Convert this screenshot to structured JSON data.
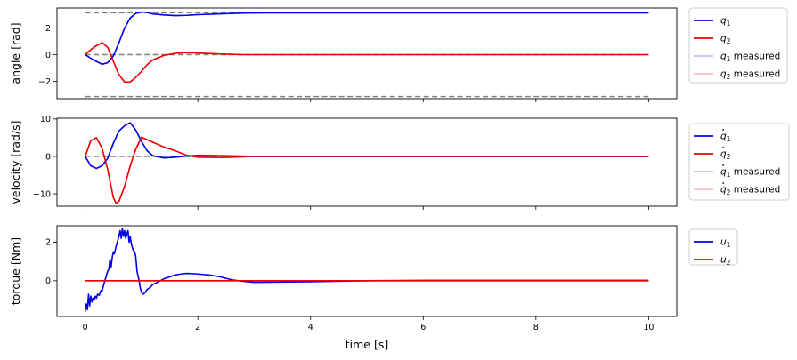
{
  "chart_data": [
    {
      "type": "line",
      "ylabel": "angle [rad]",
      "xlim": [
        -0.5,
        10.5
      ],
      "ylim": [
        -3.3,
        3.5
      ],
      "yticks": [
        -2,
        0,
        2
      ],
      "xticks": [
        0,
        2,
        4,
        6,
        8,
        10
      ],
      "show_xticklabels": false,
      "legend_position": "outside-right-top",
      "reference_lines": [
        {
          "y": 3.1416,
          "color": "#808080",
          "style": "dashed"
        },
        {
          "y": 0,
          "color": "#808080",
          "style": "dashed"
        },
        {
          "y": -3.1416,
          "color": "#808080",
          "style": "dashed"
        }
      ],
      "series": [
        {
          "name": "q1",
          "sym": "q",
          "sub": "1",
          "dot": false,
          "suffix": "",
          "color": "#0000ee",
          "alpha": 1,
          "x": [
            0,
            0.15,
            0.3,
            0.4,
            0.5,
            0.6,
            0.7,
            0.8,
            0.9,
            1.0,
            1.1,
            1.2,
            1.4,
            1.6,
            1.8,
            2.0,
            2.4,
            2.8,
            3.2,
            4,
            6,
            8,
            10
          ],
          "y": [
            0,
            -0.4,
            -0.72,
            -0.6,
            -0.1,
            0.9,
            2.0,
            2.75,
            3.1,
            3.2,
            3.17,
            3.05,
            2.98,
            2.93,
            2.95,
            3.0,
            3.06,
            3.12,
            3.14,
            3.14,
            3.14,
            3.14,
            3.14
          ]
        },
        {
          "name": "q2",
          "sym": "q",
          "sub": "2",
          "dot": false,
          "suffix": "",
          "color": "#ee0000",
          "alpha": 1,
          "x": [
            0,
            0.15,
            0.3,
            0.4,
            0.5,
            0.6,
            0.7,
            0.8,
            0.9,
            1.0,
            1.1,
            1.2,
            1.4,
            1.6,
            1.8,
            2.0,
            2.4,
            2.8,
            3.2,
            4,
            6,
            8,
            10
          ],
          "y": [
            0,
            0.55,
            0.9,
            0.55,
            -0.5,
            -1.5,
            -2.05,
            -2.05,
            -1.7,
            -1.25,
            -0.75,
            -0.4,
            -0.05,
            0.1,
            0.15,
            0.12,
            0.05,
            0.0,
            0.0,
            0.0,
            0.0,
            0.0,
            0.0
          ]
        },
        {
          "name": "q1 measured",
          "sym": "q",
          "sub": "1",
          "dot": false,
          "suffix": " measured",
          "color": "#0000ee",
          "alpha": 0.25,
          "x": [
            0,
            0.15,
            0.3,
            0.4,
            0.5,
            0.6,
            0.7,
            0.8,
            0.9,
            1.0,
            1.1,
            1.2,
            1.4,
            1.6,
            1.8,
            2.0,
            2.4,
            2.8,
            3.2,
            4,
            6,
            8,
            10
          ],
          "y": [
            0,
            -0.4,
            -0.72,
            -0.6,
            -0.1,
            0.9,
            2.0,
            2.75,
            3.1,
            3.2,
            3.17,
            3.05,
            2.98,
            2.93,
            2.95,
            3.0,
            3.06,
            3.12,
            3.14,
            3.14,
            3.14,
            3.14,
            3.14
          ]
        },
        {
          "name": "q2 measured",
          "sym": "q",
          "sub": "2",
          "dot": false,
          "suffix": " measured",
          "color": "#ee0000",
          "alpha": 0.25,
          "x": [
            0,
            0.15,
            0.3,
            0.4,
            0.5,
            0.6,
            0.7,
            0.8,
            0.9,
            1.0,
            1.1,
            1.2,
            1.4,
            1.6,
            1.8,
            2.0,
            2.4,
            2.8,
            3.2,
            4,
            6,
            8,
            10
          ],
          "y": [
            0,
            0.55,
            0.9,
            0.55,
            -0.5,
            -1.5,
            -2.05,
            -2.05,
            -1.7,
            -1.25,
            -0.75,
            -0.4,
            -0.05,
            0.1,
            0.15,
            0.12,
            0.05,
            0.0,
            0.0,
            0.0,
            0.0,
            0.0,
            0.0
          ]
        }
      ]
    },
    {
      "type": "line",
      "ylabel": "velocity [rad/s]",
      "xlim": [
        -0.5,
        10.5
      ],
      "ylim": [
        -13.3,
        10.2
      ],
      "yticks": [
        -10,
        0,
        10
      ],
      "xticks": [
        0,
        2,
        4,
        6,
        8,
        10
      ],
      "show_xticklabels": false,
      "legend_position": "outside-right-top",
      "reference_lines": [
        {
          "y": 0,
          "color": "#808080",
          "style": "dashed"
        }
      ],
      "series": [
        {
          "name": "q̇1",
          "sym": "q",
          "sub": "1",
          "dot": true,
          "suffix": "",
          "color": "#0000ee",
          "alpha": 1,
          "x": [
            0,
            0.1,
            0.2,
            0.3,
            0.4,
            0.5,
            0.6,
            0.7,
            0.8,
            0.9,
            1.0,
            1.1,
            1.2,
            1.4,
            1.6,
            1.8,
            2.0,
            2.4,
            3,
            4,
            6,
            8,
            10
          ],
          "y": [
            0,
            -2.5,
            -3.2,
            -2.5,
            -0.5,
            3.5,
            6.8,
            8.2,
            9.0,
            7.0,
            4.0,
            1.5,
            0.2,
            -0.4,
            -0.2,
            0.1,
            0.25,
            0.2,
            0.0,
            0.0,
            0.0,
            0.0,
            0.0
          ]
        },
        {
          "name": "q̇2",
          "sym": "q",
          "sub": "2",
          "dot": true,
          "suffix": "",
          "color": "#ee0000",
          "alpha": 1,
          "x": [
            0,
            0.1,
            0.2,
            0.3,
            0.4,
            0.5,
            0.55,
            0.6,
            0.7,
            0.8,
            0.9,
            1.0,
            1.2,
            1.4,
            1.6,
            1.8,
            2.0,
            2.4,
            3,
            4,
            6,
            8,
            10
          ],
          "y": [
            0,
            4.2,
            5.0,
            2.2,
            -3.5,
            -11.0,
            -12.5,
            -12.0,
            -8.0,
            -2.5,
            2.0,
            5.1,
            3.8,
            2.5,
            1.5,
            0.3,
            -0.2,
            -0.3,
            0.0,
            0.0,
            0.0,
            0.0,
            0.0
          ]
        },
        {
          "name": "q̇1 measured",
          "sym": "q",
          "sub": "1",
          "dot": true,
          "suffix": " measured",
          "color": "#0000ee",
          "alpha": 0.25,
          "x": [
            0,
            0.1,
            0.2,
            0.3,
            0.4,
            0.5,
            0.6,
            0.7,
            0.8,
            0.9,
            1.0,
            1.1,
            1.2,
            1.4,
            1.6,
            1.8,
            2.0,
            2.4,
            3,
            4,
            6,
            8,
            10
          ],
          "y": [
            0,
            -2.5,
            -3.2,
            -2.5,
            -0.5,
            3.5,
            6.8,
            8.2,
            9.0,
            7.0,
            4.0,
            1.5,
            0.2,
            -0.4,
            -0.2,
            0.1,
            0.25,
            0.2,
            0.0,
            0.0,
            0.0,
            0.0,
            0.0
          ]
        },
        {
          "name": "q̇2 measured",
          "sym": "q",
          "sub": "2",
          "dot": true,
          "suffix": " measured",
          "color": "#ee0000",
          "alpha": 0.25,
          "x": [
            0,
            0.1,
            0.2,
            0.3,
            0.4,
            0.5,
            0.55,
            0.6,
            0.7,
            0.8,
            0.9,
            1.0,
            1.2,
            1.4,
            1.6,
            1.8,
            2.0,
            2.4,
            3,
            4,
            6,
            8,
            10
          ],
          "y": [
            0,
            4.2,
            5.0,
            2.2,
            -3.5,
            -11.0,
            -12.5,
            -12.0,
            -8.0,
            -2.5,
            2.0,
            5.1,
            3.8,
            2.5,
            1.5,
            0.3,
            -0.2,
            -0.3,
            0.0,
            0.0,
            0.0,
            0.0,
            0.0
          ]
        }
      ]
    },
    {
      "type": "line",
      "ylabel": "torque [Nm]",
      "xlabel": "time [s]",
      "xlim": [
        -0.5,
        10.5
      ],
      "ylim": [
        -1.85,
        2.85
      ],
      "yticks": [
        0,
        2
      ],
      "xticks": [
        0,
        2,
        4,
        6,
        8,
        10
      ],
      "show_xticklabels": true,
      "legend_position": "outside-right-top",
      "reference_lines": [
        {
          "y": 0,
          "color": "#808080",
          "style": "dashed"
        }
      ],
      "series": [
        {
          "name": "u1",
          "sym": "u",
          "sub": "1",
          "dot": false,
          "suffix": "",
          "color": "#0000ee",
          "alpha": 1,
          "x": [
            0,
            0.02,
            0.04,
            0.06,
            0.08,
            0.1,
            0.12,
            0.14,
            0.16,
            0.18,
            0.2,
            0.22,
            0.25,
            0.28,
            0.3,
            0.32,
            0.35,
            0.38,
            0.4,
            0.42,
            0.44,
            0.46,
            0.48,
            0.5,
            0.52,
            0.55,
            0.58,
            0.6,
            0.62,
            0.64,
            0.66,
            0.68,
            0.7,
            0.72,
            0.74,
            0.76,
            0.78,
            0.8,
            0.82,
            0.85,
            0.88,
            0.9,
            0.92,
            0.95,
            0.98,
            1.0,
            1.02,
            1.05,
            1.08,
            1.1,
            1.15,
            1.2,
            1.3,
            1.4,
            1.5,
            1.6,
            1.7,
            1.8,
            2.0,
            2.2,
            2.4,
            2.6,
            2.8,
            3.0,
            3.4,
            4.0,
            5,
            6,
            8,
            10
          ],
          "y": [
            -1.6,
            -1.2,
            -1.5,
            -0.7,
            -1.3,
            -0.8,
            -1.1,
            -0.9,
            -1.0,
            -0.8,
            -0.9,
            -0.7,
            -0.75,
            -0.5,
            -0.55,
            -0.3,
            0.0,
            0.3,
            0.5,
            0.6,
            1.1,
            0.7,
            1.2,
            1.5,
            1.4,
            1.8,
            2.1,
            2.3,
            2.6,
            2.2,
            2.7,
            2.3,
            2.6,
            2.2,
            2.4,
            2.6,
            2.0,
            2.3,
            1.9,
            1.6,
            1.5,
            1.2,
            0.5,
            0.1,
            -0.4,
            -0.6,
            -0.7,
            -0.65,
            -0.55,
            -0.45,
            -0.35,
            -0.2,
            -0.05,
            0.1,
            0.2,
            0.3,
            0.35,
            0.38,
            0.35,
            0.3,
            0.2,
            0.05,
            -0.03,
            -0.08,
            -0.07,
            -0.05,
            0.0,
            0.02,
            0.02,
            0.02
          ]
        },
        {
          "name": "u2",
          "sym": "u",
          "sub": "2",
          "dot": false,
          "suffix": "",
          "color": "#ee0000",
          "alpha": 1,
          "x": [
            0,
            10
          ],
          "y": [
            0,
            0
          ]
        }
      ]
    }
  ]
}
